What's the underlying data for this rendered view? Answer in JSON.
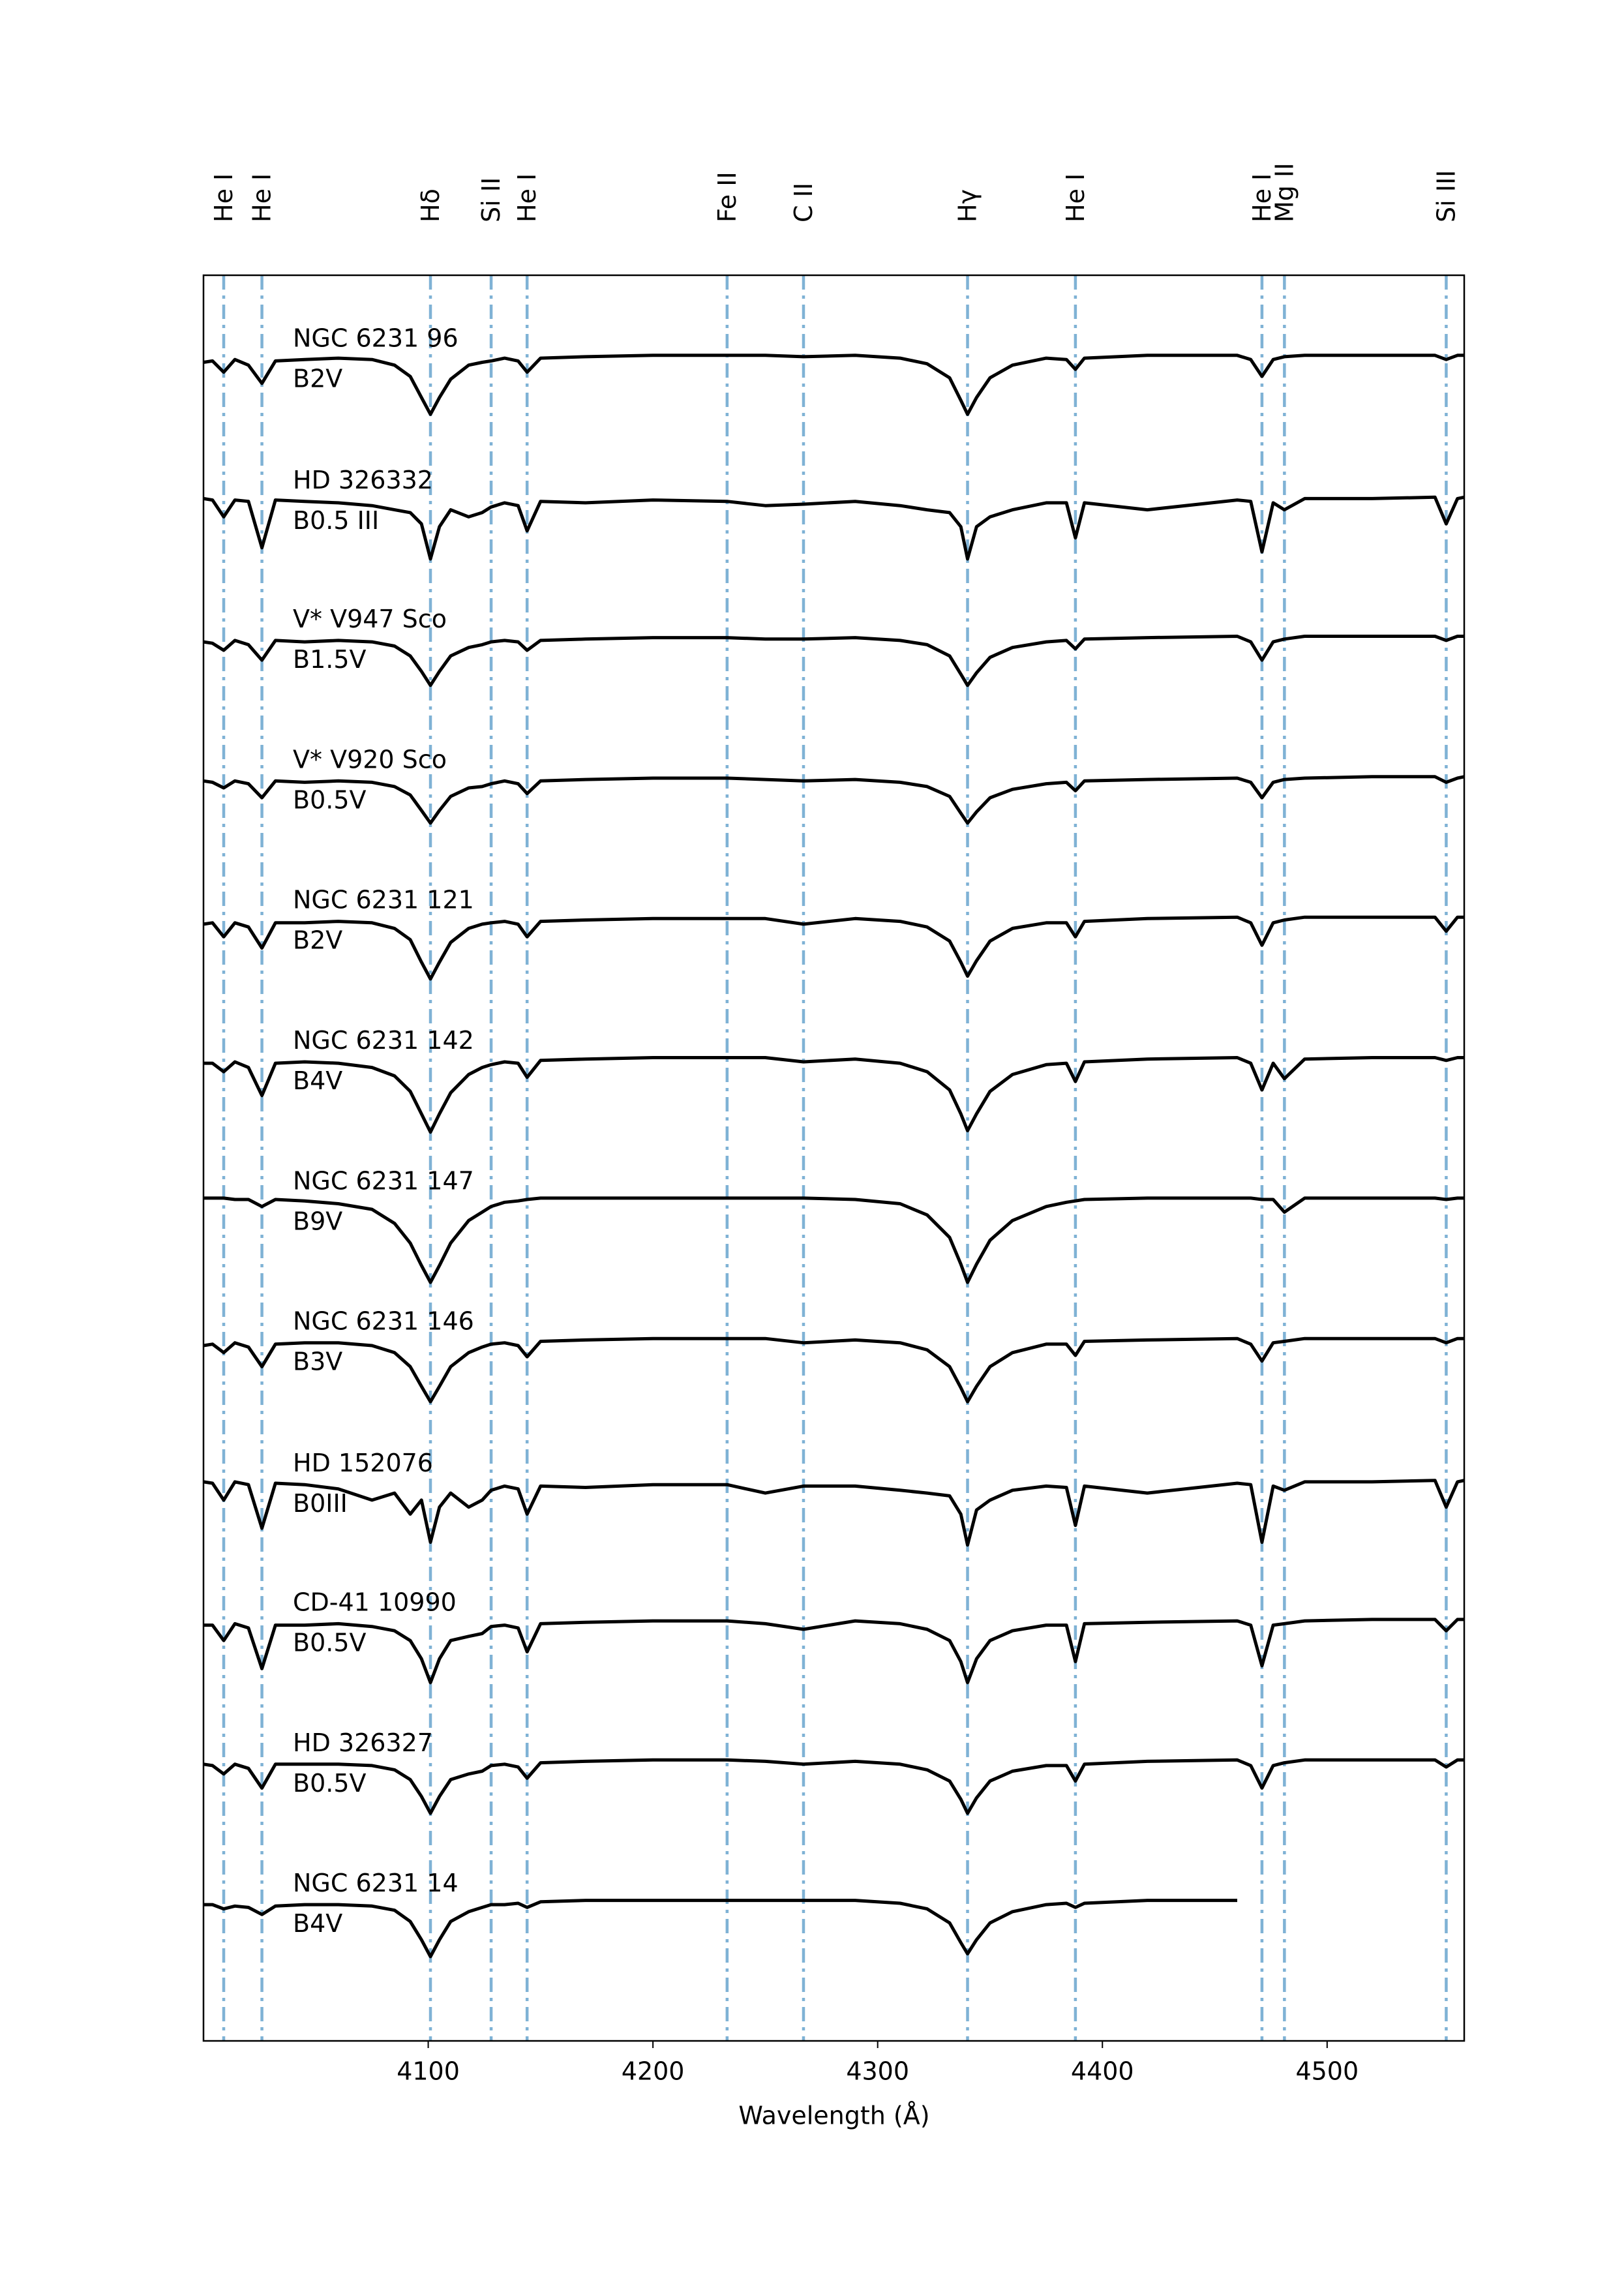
{
  "chart_data": {
    "type": "line",
    "xlabel": "Wavelength (Å)",
    "xlim": [
      4000,
      4561
    ],
    "xticks": [
      4100,
      4200,
      4300,
      4400,
      4500
    ],
    "ylim": [
      0,
      12.57
    ],
    "line_color": "#000000",
    "marker_line_color": "#7fb2d5",
    "lines": [
      {
        "label": "He I",
        "wavelength": 4009
      },
      {
        "label": "He I",
        "wavelength": 4026
      },
      {
        "label": "Hδ",
        "wavelength": 4101
      },
      {
        "label": "Si II",
        "wavelength": 4128
      },
      {
        "label": "He I",
        "wavelength": 4144
      },
      {
        "label": "Fe II",
        "wavelength": 4233
      },
      {
        "label": "C II",
        "wavelength": 4267
      },
      {
        "label": "Hγ",
        "wavelength": 4340
      },
      {
        "label": "He I",
        "wavelength": 4388
      },
      {
        "label": "He I",
        "wavelength": 4471
      },
      {
        "label": "Mg II",
        "wavelength": 4481
      },
      {
        "label": "Si III",
        "wavelength": 4553
      }
    ],
    "x": [
      4000,
      4004,
      4009,
      4014,
      4020,
      4026,
      4032,
      4045,
      4060,
      4075,
      4085,
      4092,
      4097,
      4101,
      4105,
      4110,
      4118,
      4124,
      4128,
      4134,
      4140,
      4144,
      4150,
      4170,
      4200,
      4233,
      4250,
      4267,
      4290,
      4310,
      4322,
      4332,
      4337,
      4340,
      4344,
      4350,
      4360,
      4375,
      4384,
      4388,
      4392,
      4420,
      4460,
      4466,
      4471,
      4476,
      4481,
      4490,
      4520,
      4548,
      4553,
      4558,
      4561
    ],
    "series": [
      {
        "name": "NGC 6231 96",
        "spectral_type": "B2V",
        "values": [
          11.95,
          11.96,
          11.88,
          11.97,
          11.93,
          11.8,
          11.96,
          11.97,
          11.98,
          11.97,
          11.93,
          11.85,
          11.7,
          11.58,
          11.7,
          11.83,
          11.93,
          11.95,
          11.96,
          11.98,
          11.96,
          11.88,
          11.98,
          11.99,
          12.0,
          12.0,
          12.0,
          11.99,
          12.0,
          11.98,
          11.94,
          11.84,
          11.68,
          11.58,
          11.7,
          11.84,
          11.93,
          11.98,
          11.97,
          11.9,
          11.98,
          12.0,
          12.0,
          11.97,
          11.85,
          11.97,
          11.99,
          12.0,
          12.0,
          12.0,
          11.97,
          12.0,
          12.0
        ]
      },
      {
        "name": "HD 326332",
        "spectral_type": "B0.5 III",
        "values": [
          10.98,
          10.97,
          10.85,
          10.97,
          10.96,
          10.63,
          10.97,
          10.96,
          10.95,
          10.93,
          10.9,
          10.88,
          10.8,
          10.55,
          10.78,
          10.9,
          10.85,
          10.88,
          10.92,
          10.95,
          10.93,
          10.75,
          10.96,
          10.95,
          10.97,
          10.96,
          10.93,
          10.94,
          10.96,
          10.93,
          10.9,
          10.88,
          10.78,
          10.55,
          10.78,
          10.85,
          10.9,
          10.95,
          10.95,
          10.7,
          10.95,
          10.9,
          10.97,
          10.96,
          10.6,
          10.95,
          10.9,
          10.98,
          10.98,
          10.99,
          10.8,
          10.98,
          10.99
        ]
      },
      {
        "name": "V* V947 Sco",
        "spectral_type": "B1.5V",
        "values": [
          9.96,
          9.95,
          9.9,
          9.97,
          9.94,
          9.83,
          9.97,
          9.96,
          9.97,
          9.96,
          9.93,
          9.86,
          9.75,
          9.65,
          9.75,
          9.86,
          9.92,
          9.94,
          9.96,
          9.97,
          9.96,
          9.9,
          9.97,
          9.98,
          9.99,
          9.99,
          9.98,
          9.98,
          9.99,
          9.97,
          9.94,
          9.86,
          9.73,
          9.65,
          9.74,
          9.85,
          9.92,
          9.96,
          9.97,
          9.91,
          9.98,
          9.99,
          10.0,
          9.96,
          9.83,
          9.96,
          9.98,
          10.0,
          10.0,
          10.0,
          9.97,
          10.0,
          10.0
        ]
      },
      {
        "name": "V* V920 Sco",
        "spectral_type": "B0.5V",
        "values": [
          8.97,
          8.96,
          8.92,
          8.97,
          8.95,
          8.85,
          8.97,
          8.96,
          8.97,
          8.96,
          8.93,
          8.87,
          8.76,
          8.67,
          8.76,
          8.86,
          8.92,
          8.93,
          8.95,
          8.97,
          8.95,
          8.88,
          8.97,
          8.98,
          8.99,
          8.99,
          8.98,
          8.97,
          8.98,
          8.96,
          8.93,
          8.86,
          8.74,
          8.67,
          8.75,
          8.85,
          8.91,
          8.95,
          8.96,
          8.9,
          8.97,
          8.98,
          8.99,
          8.96,
          8.85,
          8.96,
          8.98,
          8.99,
          9.0,
          9.0,
          8.96,
          8.99,
          9.0
        ]
      },
      {
        "name": "NGC 6231 121",
        "spectral_type": "B2V",
        "values": [
          7.95,
          7.96,
          7.86,
          7.96,
          7.93,
          7.78,
          7.96,
          7.96,
          7.97,
          7.96,
          7.92,
          7.84,
          7.68,
          7.56,
          7.68,
          7.82,
          7.92,
          7.95,
          7.96,
          7.97,
          7.95,
          7.86,
          7.97,
          7.98,
          7.99,
          7.99,
          7.99,
          7.95,
          7.99,
          7.97,
          7.93,
          7.83,
          7.68,
          7.58,
          7.69,
          7.83,
          7.92,
          7.96,
          7.96,
          7.86,
          7.97,
          7.99,
          8.0,
          7.96,
          7.8,
          7.96,
          7.98,
          8.0,
          8.0,
          8.0,
          7.9,
          8.0,
          8.0
        ]
      },
      {
        "name": "NGC 6231 142",
        "spectral_type": "B4V",
        "values": [
          6.96,
          6.96,
          6.9,
          6.97,
          6.93,
          6.73,
          6.96,
          6.97,
          6.96,
          6.93,
          6.87,
          6.76,
          6.6,
          6.47,
          6.6,
          6.75,
          6.88,
          6.93,
          6.95,
          6.97,
          6.96,
          6.86,
          6.98,
          6.99,
          7.0,
          7.0,
          7.0,
          6.97,
          6.99,
          6.96,
          6.9,
          6.77,
          6.6,
          6.48,
          6.6,
          6.76,
          6.88,
          6.95,
          6.96,
          6.83,
          6.97,
          6.99,
          7.0,
          6.96,
          6.77,
          6.96,
          6.85,
          6.99,
          7.0,
          7.0,
          6.98,
          7.0,
          7.0
        ]
      },
      {
        "name": "NGC 6231 147",
        "spectral_type": "B9V",
        "values": [
          6.0,
          6.0,
          6.0,
          5.99,
          5.99,
          5.94,
          5.99,
          5.98,
          5.96,
          5.92,
          5.82,
          5.68,
          5.52,
          5.4,
          5.52,
          5.68,
          5.84,
          5.9,
          5.94,
          5.97,
          5.98,
          5.99,
          6.0,
          6.0,
          6.0,
          6.0,
          6.0,
          6.0,
          5.99,
          5.96,
          5.88,
          5.72,
          5.53,
          5.4,
          5.53,
          5.7,
          5.84,
          5.94,
          5.97,
          5.98,
          5.99,
          6.0,
          6.0,
          6.0,
          5.99,
          5.99,
          5.9,
          6.0,
          6.0,
          6.0,
          5.99,
          6.0,
          6.0
        ]
      },
      {
        "name": "NGC 6231 146",
        "spectral_type": "B3V",
        "values": [
          4.95,
          4.96,
          4.9,
          4.97,
          4.94,
          4.8,
          4.96,
          4.97,
          4.97,
          4.95,
          4.9,
          4.8,
          4.66,
          4.55,
          4.66,
          4.8,
          4.9,
          4.94,
          4.96,
          4.97,
          4.95,
          4.87,
          4.98,
          4.99,
          5.0,
          5.0,
          5.0,
          4.97,
          4.99,
          4.97,
          4.92,
          4.8,
          4.65,
          4.55,
          4.66,
          4.8,
          4.9,
          4.96,
          4.96,
          4.88,
          4.98,
          4.99,
          5.0,
          4.96,
          4.84,
          4.97,
          4.98,
          5.0,
          5.0,
          5.0,
          4.97,
          5.0,
          5.0
        ]
      },
      {
        "name": "HD 152076",
        "spectral_type": "B0III",
        "values": [
          3.98,
          3.97,
          3.85,
          3.98,
          3.96,
          3.65,
          3.97,
          3.96,
          3.93,
          3.85,
          3.9,
          3.75,
          3.85,
          3.55,
          3.8,
          3.9,
          3.8,
          3.85,
          3.92,
          3.95,
          3.93,
          3.75,
          3.95,
          3.94,
          3.96,
          3.96,
          3.9,
          3.95,
          3.95,
          3.92,
          3.9,
          3.88,
          3.75,
          3.53,
          3.78,
          3.85,
          3.92,
          3.95,
          3.94,
          3.67,
          3.95,
          3.9,
          3.97,
          3.96,
          3.55,
          3.95,
          3.92,
          3.98,
          3.98,
          3.99,
          3.8,
          3.98,
          3.99
        ]
      },
      {
        "name": "CD-41 10990",
        "spectral_type": "B0.5V",
        "values": [
          2.96,
          2.96,
          2.85,
          2.97,
          2.94,
          2.65,
          2.96,
          2.96,
          2.97,
          2.95,
          2.92,
          2.85,
          2.72,
          2.55,
          2.72,
          2.85,
          2.88,
          2.9,
          2.95,
          2.96,
          2.94,
          2.77,
          2.97,
          2.98,
          2.99,
          2.99,
          2.97,
          2.93,
          2.99,
          2.97,
          2.93,
          2.85,
          2.7,
          2.55,
          2.72,
          2.85,
          2.92,
          2.96,
          2.96,
          2.7,
          2.97,
          2.98,
          2.99,
          2.96,
          2.67,
          2.96,
          2.97,
          2.99,
          3.0,
          3.0,
          2.92,
          3.0,
          3.0
        ]
      },
      {
        "name": "HD 326327",
        "spectral_type": "B0.5V",
        "values": [
          1.97,
          1.96,
          1.9,
          1.97,
          1.94,
          1.8,
          1.97,
          1.97,
          1.97,
          1.96,
          1.93,
          1.86,
          1.74,
          1.62,
          1.74,
          1.86,
          1.9,
          1.92,
          1.96,
          1.97,
          1.95,
          1.87,
          1.98,
          1.99,
          2.0,
          2.0,
          1.99,
          1.97,
          1.99,
          1.97,
          1.93,
          1.85,
          1.72,
          1.62,
          1.73,
          1.85,
          1.92,
          1.96,
          1.96,
          1.85,
          1.97,
          1.99,
          2.0,
          1.96,
          1.8,
          1.96,
          1.98,
          2.0,
          2.0,
          2.0,
          1.95,
          2.0,
          2.0
        ]
      },
      {
        "name": "NGC 6231 14",
        "spectral_type": "B4V",
        "values": [
          0.97,
          0.97,
          0.94,
          0.96,
          0.95,
          0.9,
          0.96,
          0.97,
          0.97,
          0.96,
          0.93,
          0.85,
          0.72,
          0.6,
          0.72,
          0.85,
          0.92,
          0.95,
          0.97,
          0.97,
          0.98,
          0.95,
          0.99,
          1.0,
          1.0,
          1.0,
          1.0,
          1.0,
          1.0,
          0.98,
          0.94,
          0.84,
          0.7,
          0.62,
          0.72,
          0.84,
          0.92,
          0.97,
          0.98,
          0.95,
          0.98,
          1.0,
          1.0,
          null,
          null,
          null,
          null,
          null,
          null,
          null,
          null,
          null,
          null
        ]
      }
    ]
  }
}
